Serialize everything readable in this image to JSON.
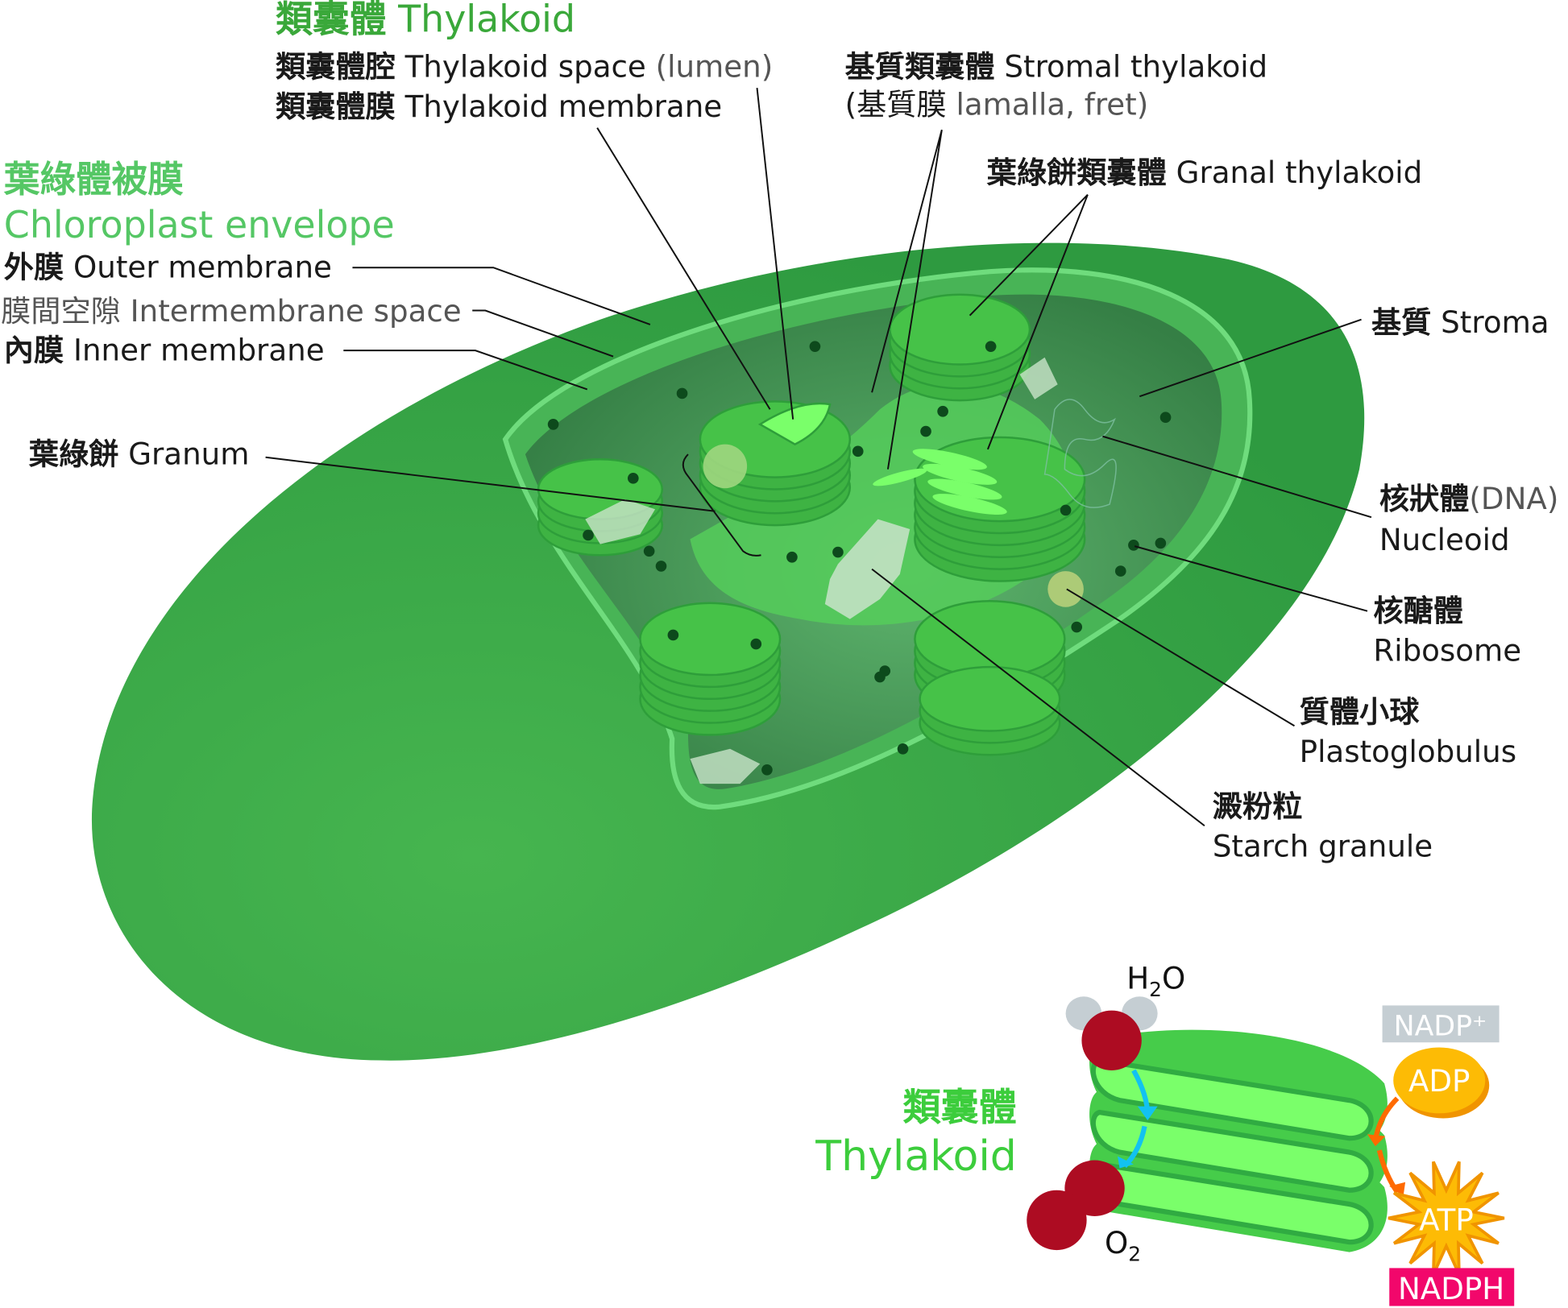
{
  "colors": {
    "outer_envelope": "#3aaa48",
    "stroma": "#3b8a4d",
    "membrane_highlight": "#6fdc7d",
    "granum": "#46c248",
    "granum_light": "#7aff6a",
    "dots": "#0d4a1c",
    "title_green": "#3aa83a",
    "envelope_green": "#55c765",
    "oxygen_red": "#ad0c22",
    "hydrogen_grey": "#c5ced3",
    "adp_orange": "#fdbb05",
    "arrow_blue": "#12c2f0",
    "arrow_orange": "#ff6a00",
    "nadph_magenta": "#f2076b",
    "nadp_grey": "#c5ced3"
  },
  "labels": {
    "thylakoid_title": {
      "zh": "類囊體",
      "en": "Thylakoid"
    },
    "thylakoid_space": {
      "zh": "類囊體腔",
      "en": "Thylakoid space",
      "note": "(lumen)"
    },
    "thylakoid_membrane": {
      "zh": "類囊體膜",
      "en": "Thylakoid membrane"
    },
    "stromal_thylakoid": {
      "zh": "基質類囊體",
      "en": "Stromal thylakoid",
      "sub_open": "(基質膜",
      "sub_en": "lamalla, fret)"
    },
    "granal_thylakoid": {
      "zh": "葉綠餅類囊體",
      "en": "Granal thylakoid"
    },
    "envelope": {
      "zh": "葉綠體被膜",
      "en": "Chloroplast envelope"
    },
    "outer_membrane": {
      "zh": "外膜",
      "en": "Outer membrane"
    },
    "intermembrane_space": {
      "zh": "膜間空隙",
      "en": "Intermembrane space"
    },
    "inner_membrane": {
      "zh": "內膜",
      "en": "Inner membrane"
    },
    "granum": {
      "zh": "葉綠餅",
      "en": "Granum"
    },
    "stroma": {
      "zh": "基質",
      "en": "Stroma"
    },
    "nucleoid": {
      "zh": "核狀體",
      "note": "(DNA)",
      "en": "Nucleoid"
    },
    "ribosome": {
      "zh": "核醣體",
      "en": "Ribosome"
    },
    "plastoglobulus": {
      "zh": "質體小球",
      "en": "Plastoglobulus"
    },
    "starch": {
      "zh": "澱粉粒",
      "en": "Starch granule"
    }
  },
  "inset": {
    "title_zh": "類囊體",
    "title_en": "Thylakoid",
    "h2o": {
      "h": "H",
      "sub": "2",
      "o": "O"
    },
    "o2": {
      "o": "O",
      "sub": "2"
    },
    "nadp_plus": "NADP⁺",
    "adp": "ADP",
    "atp": "ATP",
    "nadph": "NADPH"
  }
}
